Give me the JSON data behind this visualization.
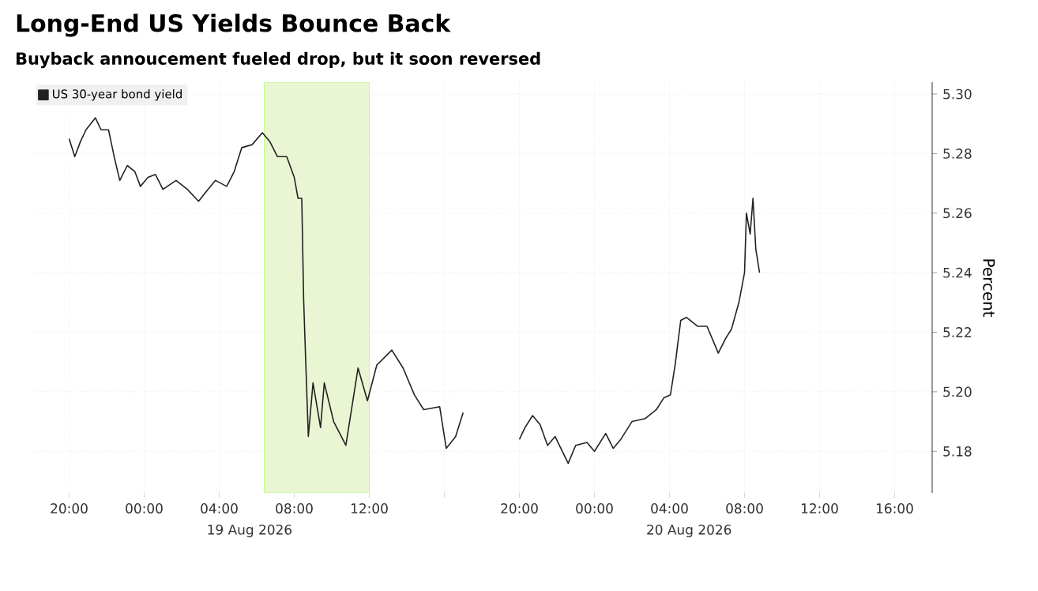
{
  "chart_data": {
    "type": "line",
    "title": "Long-End US Yields Bounce Back",
    "subtitle": "Buyback annoucement fueled drop, but it soon reversed",
    "ylabel": "Percent",
    "annotations": [
      "19 Aug 2026",
      "20 Aug 2026"
    ],
    "x": [
      "2026-08-18T20:00",
      "2026-08-18T20:18",
      "2026-08-18T20:36",
      "2026-08-18T20:54",
      "2026-08-18T21:24",
      "2026-08-18T21:42",
      "2026-08-18T22:06",
      "2026-08-18T22:24",
      "2026-08-18T22:42",
      "2026-08-18T23:06",
      "2026-08-18T23:30",
      "2026-08-18T23:48",
      "2026-08-19T00:12",
      "2026-08-19T00:36",
      "2026-08-19T01:00",
      "2026-08-19T01:42",
      "2026-08-19T02:18",
      "2026-08-19T02:54",
      "2026-08-19T03:24",
      "2026-08-19T03:48",
      "2026-08-19T04:24",
      "2026-08-19T04:48",
      "2026-08-19T05:12",
      "2026-08-19T05:45",
      "2026-08-19T06:18",
      "2026-08-19T06:42",
      "2026-08-19T07:06",
      "2026-08-19T07:36",
      "2026-08-19T08:00",
      "2026-08-19T08:12",
      "2026-08-19T08:24",
      "2026-08-19T08:30",
      "2026-08-19T08:36",
      "2026-08-19T08:45",
      "2026-08-19T09:00",
      "2026-08-19T09:24",
      "2026-08-19T09:36",
      "2026-08-19T10:06",
      "2026-08-19T10:45",
      "2026-08-19T11:24",
      "2026-08-19T11:54",
      "2026-08-19T12:24",
      "2026-08-19T13:12",
      "2026-08-19T13:48",
      "2026-08-19T14:24",
      "2026-08-19T14:54",
      "2026-08-19T15:45",
      "2026-08-19T16:06",
      "2026-08-19T16:36",
      "2026-08-19T17:00",
      "2026-08-19T18:30",
      "2026-08-19T20:00",
      "2026-08-19T20:18",
      "2026-08-19T20:42",
      "2026-08-19T21:06",
      "2026-08-19T21:30",
      "2026-08-19T21:54",
      "2026-08-19T22:36",
      "2026-08-19T23:00",
      "2026-08-19T23:36",
      "2026-08-20T00:00",
      "2026-08-20T00:36",
      "2026-08-20T01:00",
      "2026-08-20T01:24",
      "2026-08-20T02:00",
      "2026-08-20T02:42",
      "2026-08-20T03:18",
      "2026-08-20T03:42",
      "2026-08-20T04:03",
      "2026-08-20T04:18",
      "2026-08-20T04:36",
      "2026-08-20T04:54",
      "2026-08-20T05:30",
      "2026-08-20T06:00",
      "2026-08-20T06:36",
      "2026-08-20T07:00",
      "2026-08-20T07:18",
      "2026-08-20T07:42",
      "2026-08-20T08:00",
      "2026-08-20T08:06",
      "2026-08-20T08:18",
      "2026-08-20T08:27",
      "2026-08-20T08:36",
      "2026-08-20T08:48"
    ],
    "series": [
      {
        "name": "US 30-year bond yield",
        "color": "#222222",
        "values": [
          5.285,
          5.279,
          5.284,
          5.288,
          5.292,
          5.288,
          5.288,
          5.279,
          5.271,
          5.276,
          5.274,
          5.269,
          5.272,
          5.273,
          5.268,
          5.271,
          5.268,
          5.264,
          5.268,
          5.271,
          5.269,
          5.274,
          5.282,
          5.283,
          5.287,
          5.284,
          5.279,
          5.279,
          5.272,
          5.265,
          5.265,
          5.231,
          5.212,
          5.185,
          5.203,
          5.188,
          5.203,
          5.19,
          5.182,
          5.208,
          5.197,
          5.209,
          5.214,
          5.208,
          5.199,
          5.194,
          5.195,
          5.181,
          5.185,
          5.193,
          null,
          5.184,
          5.188,
          5.192,
          5.189,
          5.182,
          5.185,
          5.176,
          5.182,
          5.183,
          5.18,
          5.186,
          5.181,
          5.184,
          5.19,
          5.191,
          5.194,
          5.198,
          5.199,
          5.209,
          5.224,
          5.225,
          5.222,
          5.222,
          5.213,
          5.218,
          5.221,
          5.23,
          5.24,
          5.26,
          5.253,
          5.265,
          5.248,
          5.24
        ]
      }
    ],
    "xlim": [
      "2026-08-18T18:00",
      "2026-08-20T18:00"
    ],
    "ylim": [
      5.166,
      5.304
    ],
    "xticks": [
      {
        "value": "2026-08-18T20:00",
        "label": "20:00"
      },
      {
        "value": "2026-08-19T00:00",
        "label": "00:00"
      },
      {
        "value": "2026-08-19T04:00",
        "label": "04:00"
      },
      {
        "value": "2026-08-19T08:00",
        "label": "08:00"
      },
      {
        "value": "2026-08-19T12:00",
        "label": "12:00"
      },
      {
        "value": "2026-08-19T16:00",
        "label": null
      },
      {
        "value": "2026-08-19T20:00",
        "label": "20:00"
      },
      {
        "value": "2026-08-20T00:00",
        "label": "00:00"
      },
      {
        "value": "2026-08-20T04:00",
        "label": "04:00"
      },
      {
        "value": "2026-08-20T08:00",
        "label": "08:00"
      },
      {
        "value": "2026-08-20T12:00",
        "label": "12:00"
      },
      {
        "value": "2026-08-20T16:00",
        "label": "16:00"
      }
    ],
    "yticks": [
      5.18,
      {
        "value": 5.2,
        "label": "5.20"
      },
      5.22,
      5.24,
      5.26,
      5.28,
      {
        "value": 5.3,
        "label": "5.30"
      }
    ],
    "bands": [
      {
        "axis": "x",
        "from": "2026-08-19T06:24",
        "to": "2026-08-19T12:00",
        "color": "#eaf5d3"
      }
    ],
    "grid": true,
    "legend": "top left",
    "marker": "none",
    "line_style": "solid"
  }
}
